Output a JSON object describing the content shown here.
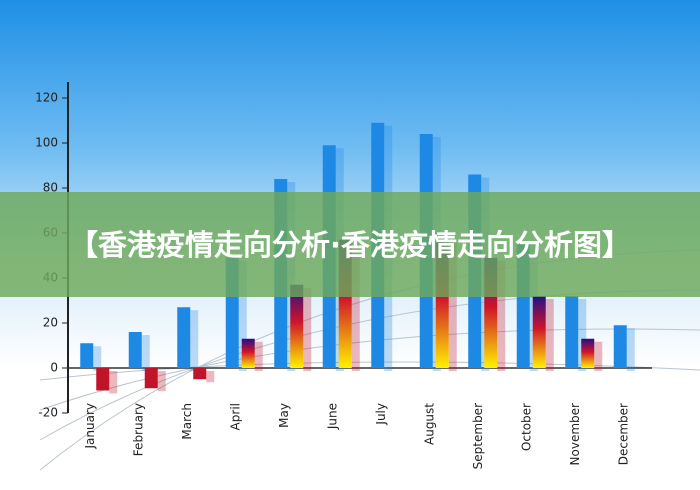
{
  "chart_data": {
    "type": "bar",
    "title": "【香港疫情走向分析·香港疫情走向分析图】",
    "categories": [
      "January",
      "February",
      "March",
      "April",
      "May",
      "June",
      "July",
      "August",
      "September",
      "October",
      "November",
      "December"
    ],
    "series": [
      {
        "color": "#1e88e5",
        "values": [
          11,
          16,
          27,
          49,
          84,
          99,
          109,
          104,
          86,
          56,
          32,
          19
        ]
      },
      {
        "color": "#c0142a",
        "values": [
          -10,
          -9,
          -5,
          13,
          37,
          57,
          null,
          57,
          49,
          32,
          13,
          null
        ]
      }
    ],
    "ylim": [
      -20,
      120
    ],
    "yticks": [
      -20,
      0,
      20,
      40,
      60,
      80,
      100,
      120
    ]
  }
}
